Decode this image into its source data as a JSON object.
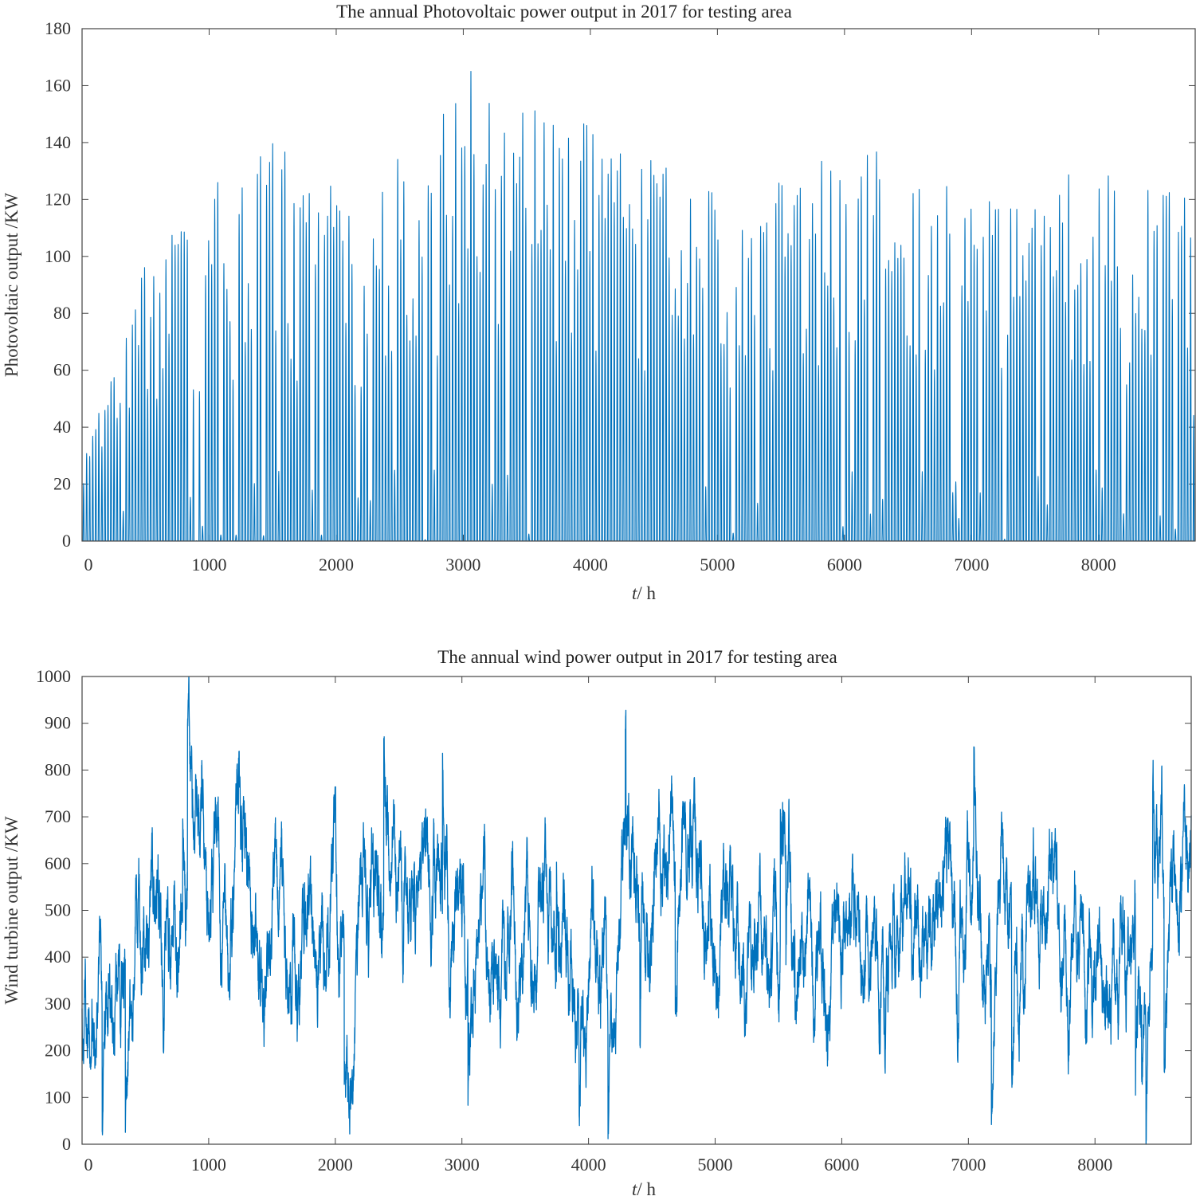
{
  "figure": {
    "panels": [
      {
        "title": "The annual Photovoltaic power  output in 2017 for testing area",
        "ylabel": "Photovoltaic output  /KW",
        "xlabel_italic": "t",
        "xlabel_rest": "/  h"
      },
      {
        "title": "The annual wind power  output in 2017 for testing area",
        "ylabel": "Wind turbine output  /KW",
        "xlabel_italic": "t",
        "xlabel_rest": "/  h"
      }
    ]
  },
  "colors": {
    "series": "#0072BD",
    "axes": "#444444"
  },
  "chart_data": [
    {
      "type": "line",
      "title": "The annual Photovoltaic power  output in 2017 for testing area",
      "xlabel": "t/ h",
      "ylabel": "Photovoltaic output  /KW",
      "xlim": [
        0,
        8760
      ],
      "ylim": [
        0,
        180
      ],
      "xticks": [
        0,
        1000,
        2000,
        3000,
        4000,
        5000,
        6000,
        7000,
        8000
      ],
      "yticks": [
        0,
        20,
        40,
        60,
        80,
        100,
        120,
        140,
        160,
        180
      ],
      "grid": false,
      "series": [
        {
          "sampling": "hourly, daily peak at hour 12 of each day, zero at night",
          "daily_peak_x": [
            12,
            492,
            972,
            1452,
            1932,
            2412,
            2892,
            3372,
            3852,
            4332,
            4812,
            5292,
            5772,
            6252,
            6732,
            7212,
            7692,
            8172,
            8652
          ],
          "daily_peak_envelope": [
            30,
            98,
            128,
            140,
            141,
            133,
            165,
            157,
            154,
            144,
            125,
            121,
            138,
            138,
            138,
            118,
            130,
            130,
            124
          ],
          "max_value": 165,
          "max_x": 3050
        }
      ]
    },
    {
      "type": "line",
      "title": "The annual wind power  output in 2017 for testing area",
      "xlabel": "t/ h",
      "ylabel": "Wind turbine output  /KW",
      "xlim": [
        0,
        8760
      ],
      "ylim": [
        0,
        1000
      ],
      "xticks": [
        0,
        1000,
        2000,
        3000,
        4000,
        5000,
        6000,
        7000,
        8000
      ],
      "yticks": [
        0,
        100,
        200,
        300,
        400,
        500,
        600,
        700,
        800,
        900,
        1000
      ],
      "grid": false,
      "series": [
        {
          "sampling": "hourly, clipped to [0, 1000]",
          "trend_x": [
            0,
            500,
            1000,
            1500,
            2000,
            2500,
            3000,
            3500,
            4000,
            4500,
            5000,
            5500,
            6000,
            6500,
            7000,
            7500,
            8000,
            8500,
            8760
          ],
          "trend_y": [
            320,
            420,
            500,
            520,
            430,
            560,
            480,
            380,
            420,
            600,
            520,
            330,
            420,
            470,
            460,
            440,
            380,
            500,
            540
          ],
          "min_value": 0,
          "max_value": 1000
        }
      ]
    }
  ]
}
